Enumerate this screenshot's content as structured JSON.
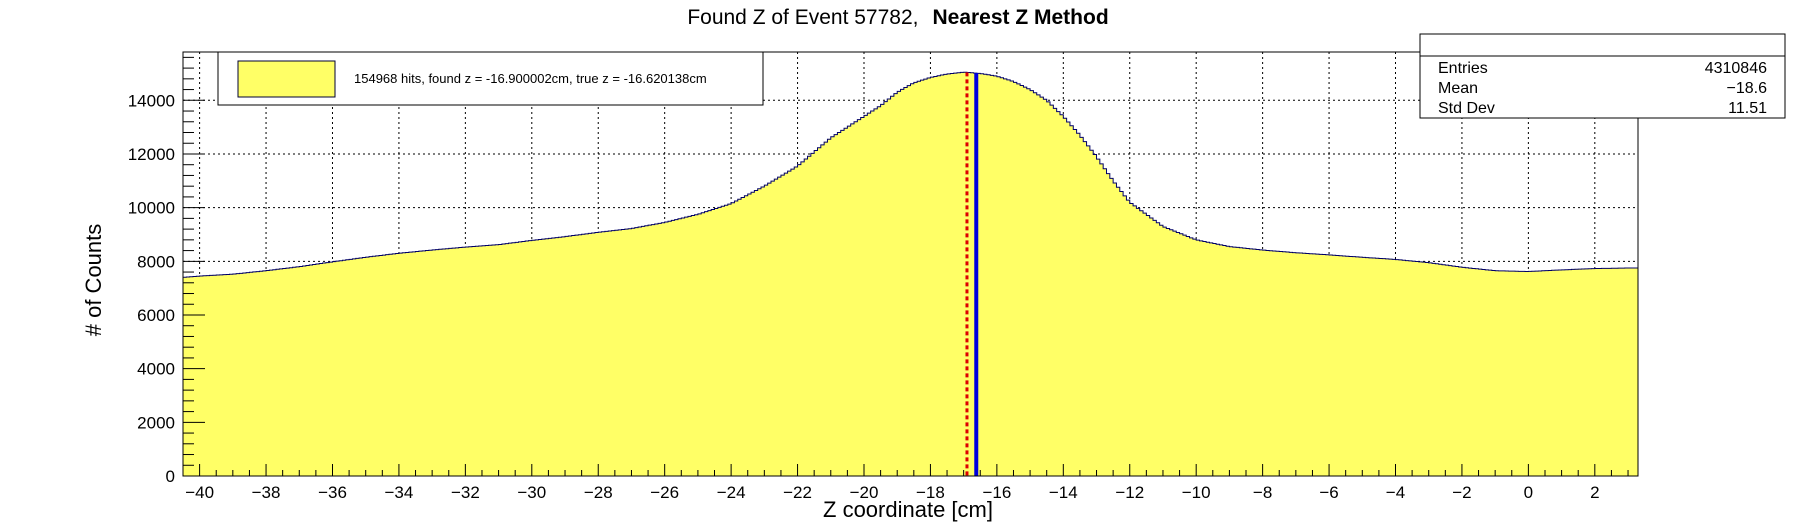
{
  "title": {
    "normal": "Found Z of Event 57782,",
    "bold": "Nearest Z Method"
  },
  "legend": {
    "text": "154968 hits, found z = -16.900002cm, true z = -16.620138cm",
    "swatch_color": "#ffff66",
    "border_color": "#000033"
  },
  "stats": {
    "entries_label": "Entries",
    "entries_value": "4310846",
    "mean_label": "Mean",
    "mean_value": "−18.6",
    "stddev_label": "Std Dev",
    "stddev_value": "11.51"
  },
  "colors": {
    "fill": "#ffff66",
    "outline": "#000066",
    "found_line": "#dd0000",
    "true_line": "#0000dd",
    "grid": "#000000"
  },
  "chart_data": {
    "type": "area",
    "title": "Found Z of Event 57782, Nearest Z Method",
    "xlabel": "Z coordinate [cm]",
    "ylabel": "# of Counts",
    "xlim": [
      -40.5,
      3.3
    ],
    "ylim": [
      0,
      15800
    ],
    "xticks": [
      "-40",
      "-38",
      "-36",
      "-34",
      "-32",
      "-30",
      "-28",
      "-26",
      "-24",
      "-22",
      "-20",
      "-18",
      "-16",
      "-14",
      "-12",
      "-10",
      "-8",
      "-6",
      "-4",
      "-2",
      "0",
      "2"
    ],
    "yticks": [
      "0",
      "2000",
      "4000",
      "6000",
      "8000",
      "10000",
      "12000",
      "14000"
    ],
    "grid": true,
    "legend_position": "top-left",
    "markers": {
      "found_z": -16.900002,
      "true_z": -16.620138
    },
    "x": [
      -40.5,
      -40.0,
      -39.0,
      -38.0,
      -37.0,
      -36.0,
      -35.0,
      -34.0,
      -33.0,
      -32.0,
      -31.0,
      -30.0,
      -29.0,
      -28.0,
      -27.0,
      -26.0,
      -25.0,
      -24.0,
      -23.0,
      -22.0,
      -21.0,
      -20.0,
      -19.5,
      -19.0,
      -18.5,
      -18.0,
      -17.5,
      -17.0,
      -16.5,
      -16.0,
      -15.5,
      -15.0,
      -14.5,
      -14.0,
      -13.5,
      -13.0,
      -12.5,
      -12.0,
      -11.0,
      -10.0,
      -9.0,
      -8.0,
      -7.0,
      -6.0,
      -5.0,
      -4.0,
      -3.0,
      -2.0,
      -1.0,
      0.0,
      1.0,
      2.0,
      3.0,
      3.3
    ],
    "values": [
      7400,
      7450,
      7520,
      7650,
      7800,
      7980,
      8150,
      8300,
      8420,
      8530,
      8620,
      8780,
      8920,
      9080,
      9220,
      9450,
      9750,
      10150,
      10800,
      11550,
      12600,
      13400,
      13800,
      14300,
      14650,
      14850,
      14980,
      15050,
      15000,
      14900,
      14700,
      14400,
      14000,
      13400,
      12700,
      11900,
      11000,
      10200,
      9300,
      8800,
      8550,
      8420,
      8320,
      8240,
      8150,
      8070,
      7950,
      7780,
      7650,
      7620,
      7680,
      7730,
      7750,
      7750
    ]
  }
}
